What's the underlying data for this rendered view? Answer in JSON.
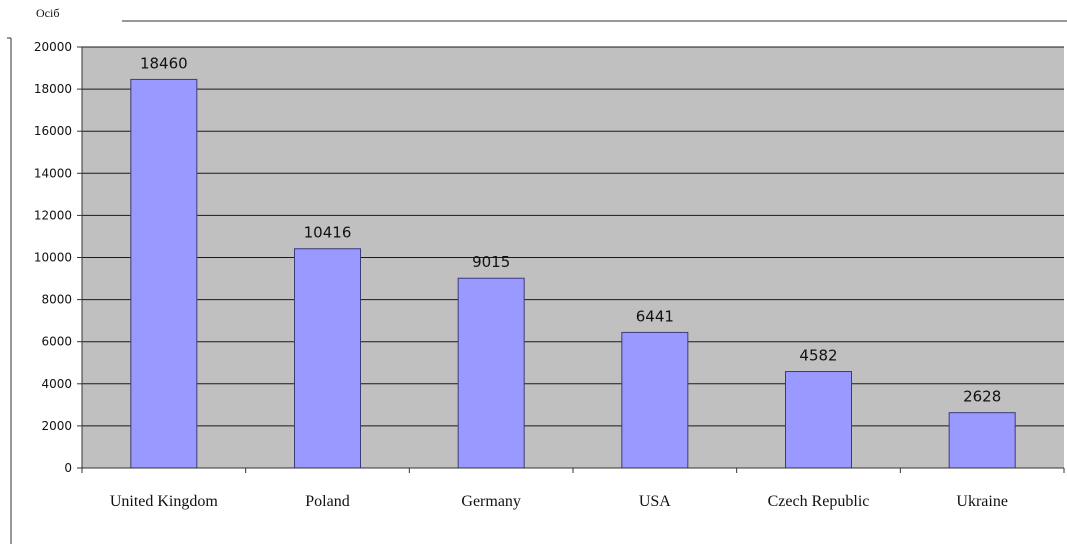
{
  "chart_data": {
    "type": "bar",
    "ylabel": "Осіб",
    "categories": [
      "United Kingdom",
      "Poland",
      "Germany",
      "USA",
      "Czech Republic",
      "Ukraine"
    ],
    "values": [
      18460,
      10416,
      9015,
      6441,
      4582,
      2628
    ],
    "ylim": [
      0,
      20000
    ],
    "yticks": [
      "0",
      "2000",
      "4000",
      "6000",
      "8000",
      "10000",
      "12000",
      "14000",
      "16000",
      "18000",
      "20000"
    ],
    "grid": true,
    "legend": "none",
    "colors": {
      "bar_fill": "#9999ff",
      "bar_stroke": "#3a3a7a",
      "plot_bg": "#c0c0c0",
      "grid": "#1a1a1a"
    }
  }
}
